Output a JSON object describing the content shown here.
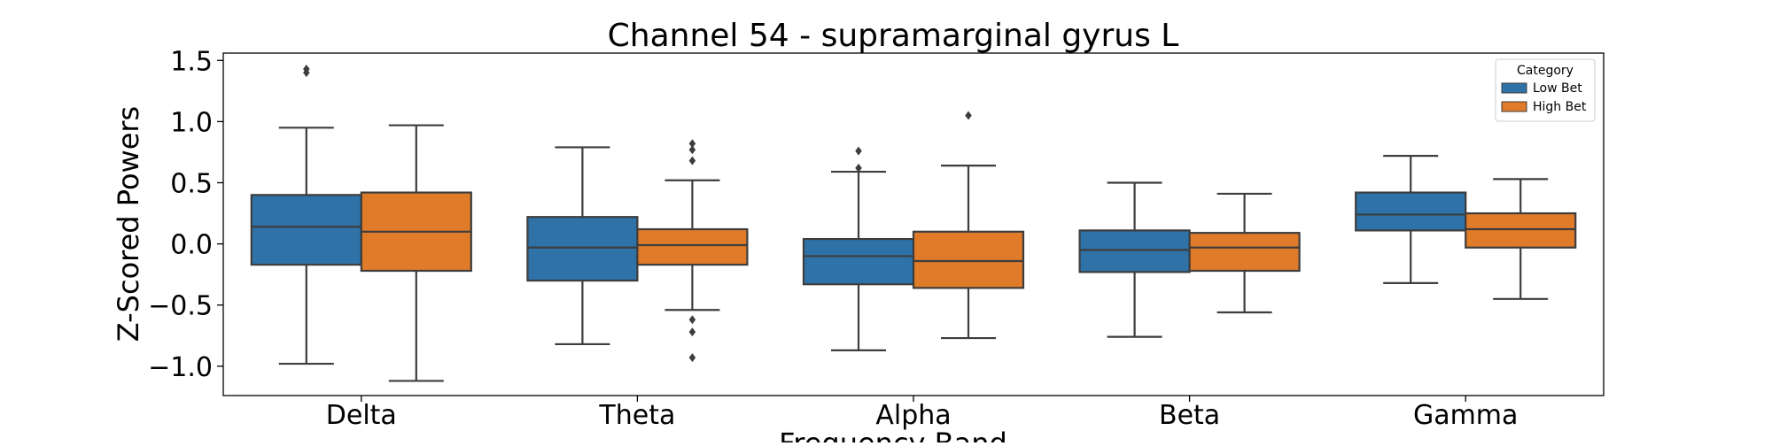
{
  "chart_data": {
    "type": "box",
    "title": "Channel 54 - supramarginal gyrus L",
    "xlabel": "Frequency Band",
    "ylabel": "Z-Scored Powers",
    "categories": [
      "Delta",
      "Theta",
      "Alpha",
      "Beta",
      "Gamma"
    ],
    "ylim": [
      -1.24,
      1.56
    ],
    "yticks": [
      -1.0,
      -0.5,
      0.0,
      0.5,
      1.0,
      1.5
    ],
    "ytick_labels": [
      "−1.0",
      "−0.5",
      "0.0",
      "0.5",
      "1.0",
      "1.5"
    ],
    "grid": false,
    "legend": {
      "title": "Category",
      "position": "top-right"
    },
    "series": [
      {
        "name": "Low Bet",
        "color": "#2f72a8",
        "boxes": [
          {
            "whisker_low": -0.98,
            "q1": -0.17,
            "median": 0.14,
            "q3": 0.4,
            "whisker_high": 0.95,
            "outliers": [
              1.43,
              1.4
            ]
          },
          {
            "whisker_low": -0.82,
            "q1": -0.3,
            "median": -0.03,
            "q3": 0.22,
            "whisker_high": 0.79,
            "outliers": []
          },
          {
            "whisker_low": -0.87,
            "q1": -0.33,
            "median": -0.1,
            "q3": 0.04,
            "whisker_high": 0.59,
            "outliers": [
              0.76,
              0.62
            ]
          },
          {
            "whisker_low": -0.76,
            "q1": -0.23,
            "median": -0.05,
            "q3": 0.11,
            "whisker_high": 0.5,
            "outliers": []
          },
          {
            "whisker_low": -0.32,
            "q1": 0.11,
            "median": 0.24,
            "q3": 0.42,
            "whisker_high": 0.72,
            "outliers": []
          }
        ]
      },
      {
        "name": "High Bet",
        "color": "#e07b2a",
        "boxes": [
          {
            "whisker_low": -1.12,
            "q1": -0.22,
            "median": 0.1,
            "q3": 0.42,
            "whisker_high": 0.97,
            "outliers": []
          },
          {
            "whisker_low": -0.54,
            "q1": -0.17,
            "median": -0.01,
            "q3": 0.12,
            "whisker_high": 0.52,
            "outliers": [
              0.82,
              0.77,
              0.68,
              -0.62,
              -0.72,
              -0.93
            ]
          },
          {
            "whisker_low": -0.77,
            "q1": -0.36,
            "median": -0.14,
            "q3": 0.1,
            "whisker_high": 0.64,
            "outliers": [
              1.05
            ]
          },
          {
            "whisker_low": -0.56,
            "q1": -0.22,
            "median": -0.03,
            "q3": 0.09,
            "whisker_high": 0.41,
            "outliers": []
          },
          {
            "whisker_low": -0.45,
            "q1": -0.03,
            "median": 0.12,
            "q3": 0.25,
            "whisker_high": 0.53,
            "outliers": []
          }
        ]
      }
    ]
  }
}
